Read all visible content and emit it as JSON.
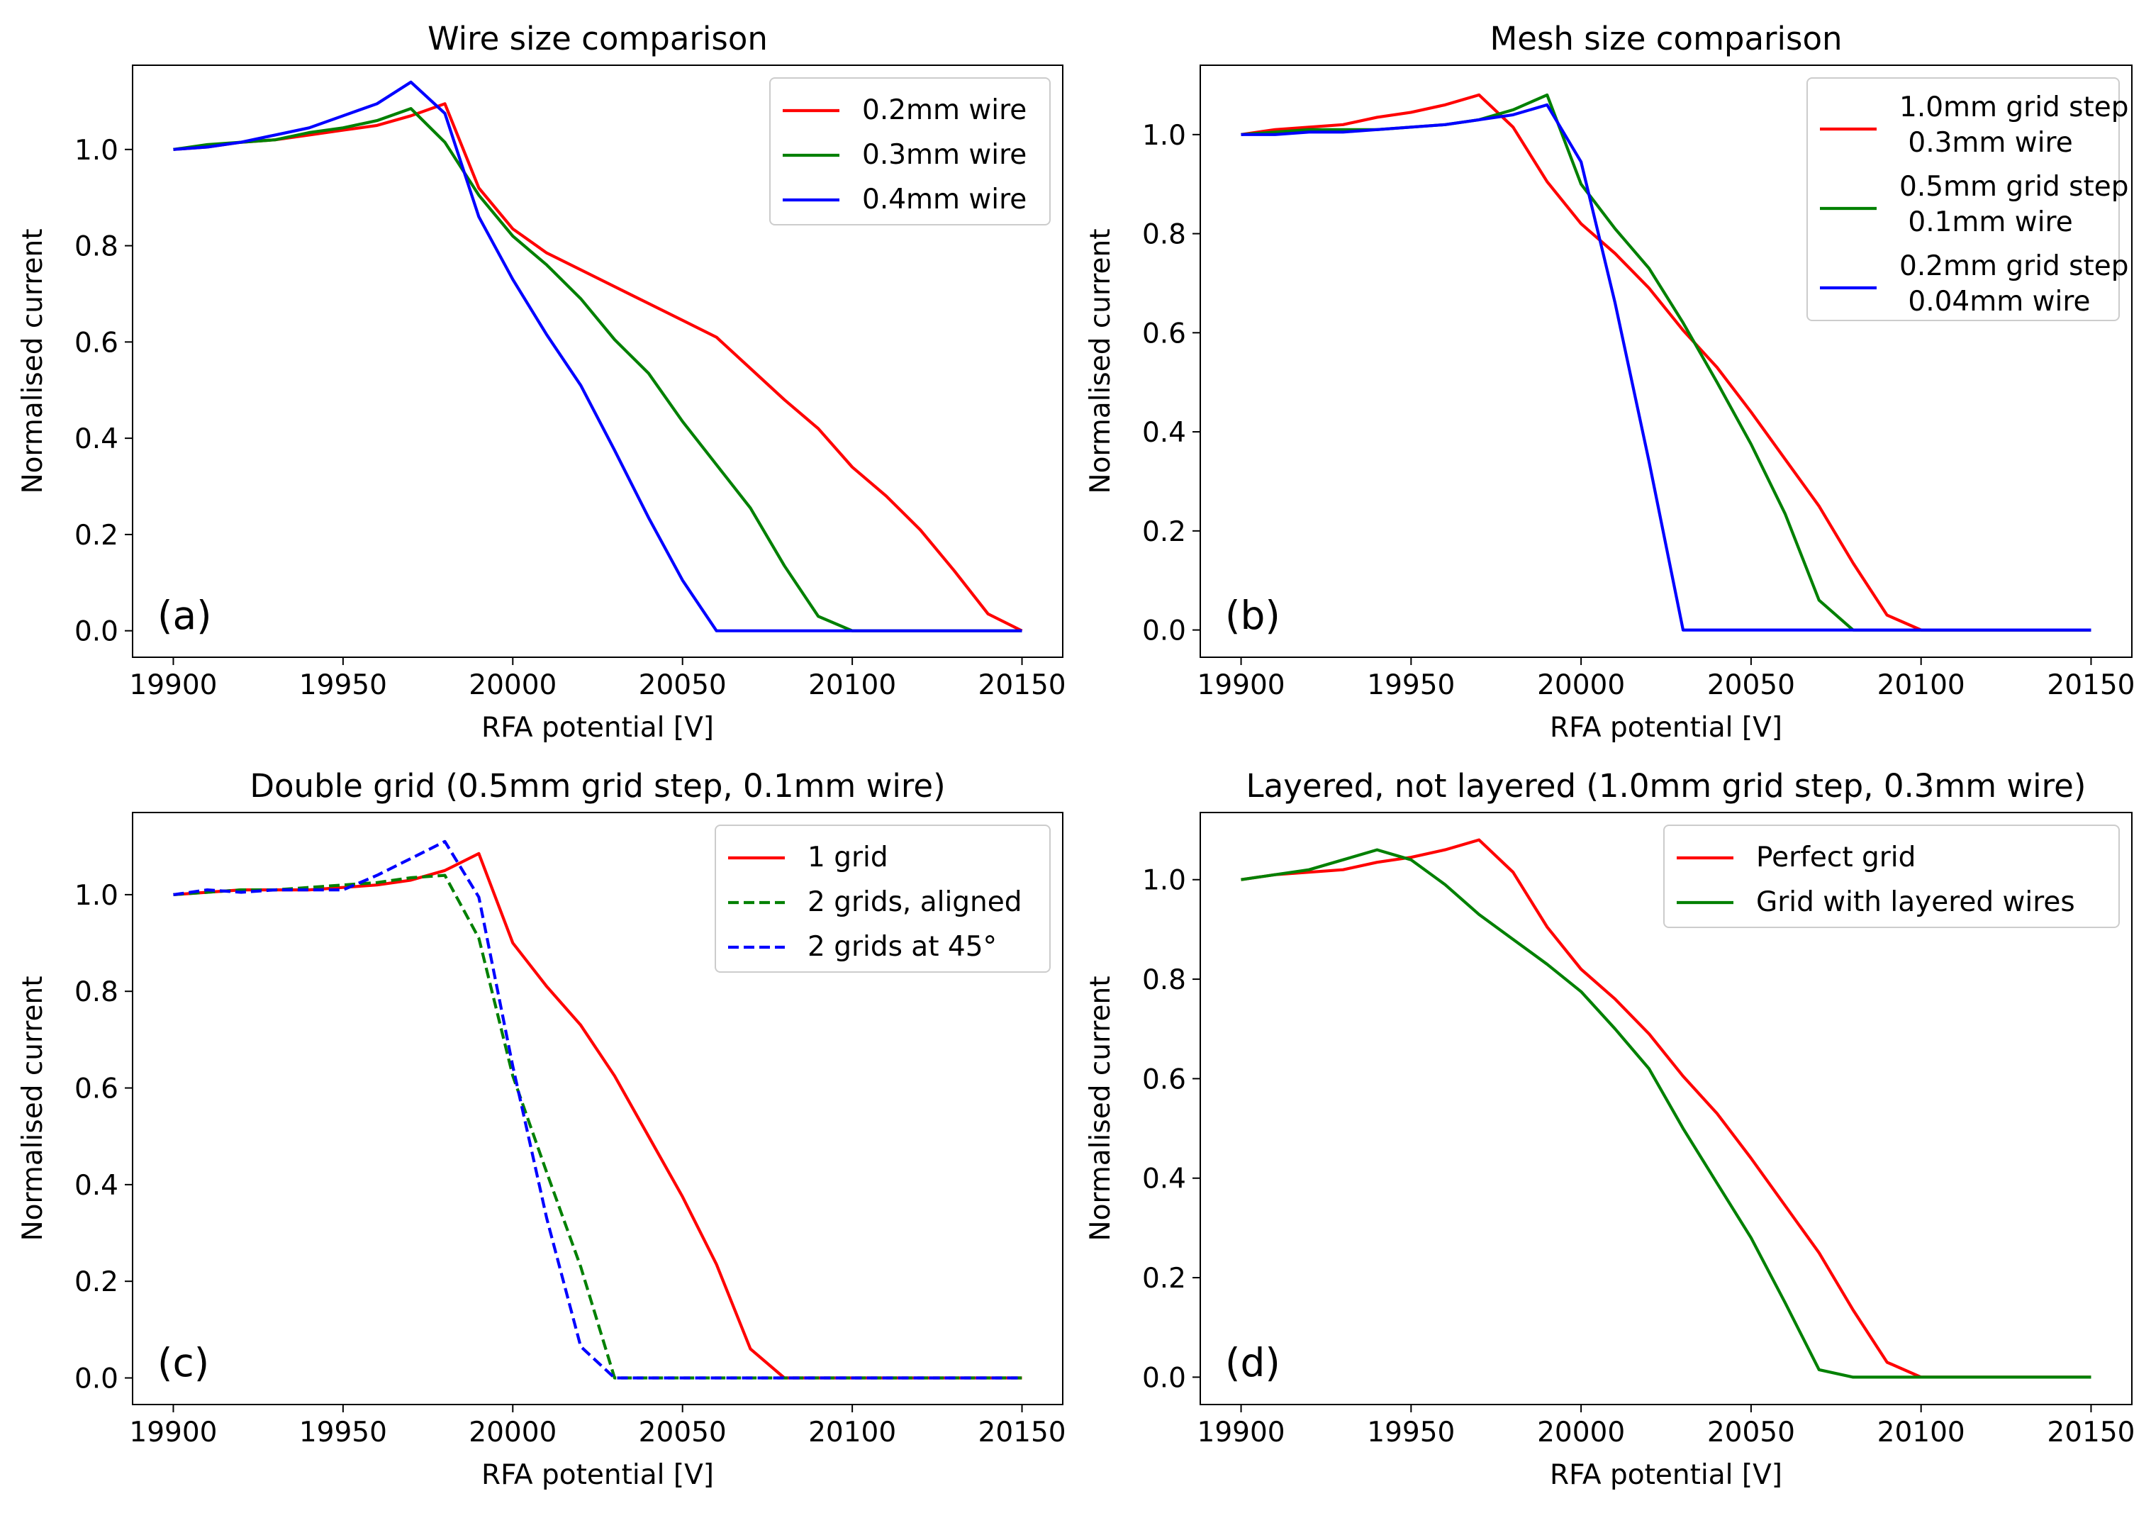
{
  "chart_data": [
    {
      "type": "line",
      "title": "Wire size comparison",
      "xlabel": "RFA potential [V]",
      "ylabel": "Normalised current",
      "panel_label": "(a)",
      "xlim": [
        19888,
        20162
      ],
      "ylim": [
        -0.055,
        1.175
      ],
      "xticks": [
        19900,
        19950,
        20000,
        20050,
        20100,
        20150
      ],
      "yticks": [
        0.0,
        0.2,
        0.4,
        0.6,
        0.8,
        1.0
      ],
      "grid": false,
      "legend_position": "top-right",
      "series": [
        {
          "name": "0.2mm wire",
          "color": "#ff0000",
          "dash": "solid",
          "x": [
            19900,
            19910,
            19920,
            19930,
            19940,
            19950,
            19960,
            19970,
            19980,
            19990,
            20000,
            20010,
            20020,
            20030,
            20040,
            20050,
            20060,
            20070,
            20080,
            20090,
            20100,
            20110,
            20120,
            20130,
            20140,
            20150
          ],
          "y": [
            1.0,
            1.005,
            1.015,
            1.02,
            1.03,
            1.04,
            1.05,
            1.07,
            1.095,
            0.92,
            0.835,
            0.785,
            0.75,
            0.715,
            0.68,
            0.645,
            0.61,
            0.545,
            0.48,
            0.42,
            0.34,
            0.28,
            0.21,
            0.125,
            0.035,
            0.0
          ]
        },
        {
          "name": "0.3mm wire",
          "color": "#008000",
          "dash": "solid",
          "x": [
            19900,
            19910,
            19920,
            19930,
            19940,
            19950,
            19960,
            19970,
            19980,
            19990,
            20000,
            20010,
            20020,
            20030,
            20040,
            20050,
            20060,
            20070,
            20080,
            20090,
            20100,
            20110,
            20120,
            20130,
            20140,
            20150
          ],
          "y": [
            1.0,
            1.01,
            1.015,
            1.02,
            1.035,
            1.045,
            1.06,
            1.085,
            1.015,
            0.905,
            0.82,
            0.76,
            0.69,
            0.605,
            0.535,
            0.435,
            0.345,
            0.255,
            0.135,
            0.03,
            0.0,
            0.0,
            0.0,
            0.0,
            0.0,
            0.0
          ]
        },
        {
          "name": "0.4mm wire",
          "color": "#0000ff",
          "dash": "solid",
          "x": [
            19900,
            19910,
            19920,
            19930,
            19940,
            19950,
            19960,
            19970,
            19980,
            19990,
            20000,
            20010,
            20020,
            20030,
            20040,
            20050,
            20060,
            20070,
            20080,
            20090,
            20100,
            20110,
            20120,
            20130,
            20140,
            20150
          ],
          "y": [
            1.0,
            1.005,
            1.015,
            1.03,
            1.045,
            1.07,
            1.095,
            1.14,
            1.075,
            0.86,
            0.73,
            0.615,
            0.51,
            0.375,
            0.235,
            0.105,
            0.0,
            0.0,
            0.0,
            0.0,
            0.0,
            0.0,
            0.0,
            0.0,
            0.0,
            0.0
          ]
        }
      ]
    },
    {
      "type": "line",
      "title": "Mesh size comparison",
      "xlabel": "RFA potential [V]",
      "ylabel": "Normalised current",
      "panel_label": "(b)",
      "xlim": [
        19888,
        20162
      ],
      "ylim": [
        -0.055,
        1.14
      ],
      "xticks": [
        19900,
        19950,
        20000,
        20050,
        20100,
        20150
      ],
      "yticks": [
        0.0,
        0.2,
        0.4,
        0.6,
        0.8,
        1.0
      ],
      "grid": false,
      "legend_position": "top-right",
      "series": [
        {
          "name": "1.0mm grid step\n 0.3mm wire",
          "color": "#ff0000",
          "dash": "solid",
          "x": [
            19900,
            19910,
            19920,
            19930,
            19940,
            19950,
            19960,
            19970,
            19980,
            19990,
            20000,
            20010,
            20020,
            20030,
            20040,
            20050,
            20060,
            20070,
            20080,
            20090,
            20100,
            20110,
            20120,
            20130,
            20140,
            20150
          ],
          "y": [
            1.0,
            1.01,
            1.015,
            1.02,
            1.035,
            1.045,
            1.06,
            1.08,
            1.015,
            0.905,
            0.82,
            0.76,
            0.69,
            0.605,
            0.53,
            0.44,
            0.345,
            0.25,
            0.135,
            0.03,
            0.0,
            0.0,
            0.0,
            0.0,
            0.0,
            0.0
          ]
        },
        {
          "name": "0.5mm grid step\n 0.1mm wire",
          "color": "#008000",
          "dash": "solid",
          "x": [
            19900,
            19910,
            19920,
            19930,
            19940,
            19950,
            19960,
            19970,
            19980,
            19990,
            20000,
            20010,
            20020,
            20030,
            20040,
            20050,
            20060,
            20070,
            20080,
            20090,
            20100,
            20110,
            20120,
            20130,
            20140,
            20150
          ],
          "y": [
            1.0,
            1.005,
            1.01,
            1.01,
            1.01,
            1.015,
            1.02,
            1.03,
            1.05,
            1.08,
            0.9,
            0.81,
            0.73,
            0.62,
            0.5,
            0.375,
            0.235,
            0.06,
            0.0,
            0.0,
            0.0,
            0.0,
            0.0,
            0.0,
            0.0,
            0.0
          ]
        },
        {
          "name": "0.2mm grid step\n 0.04mm wire",
          "color": "#0000ff",
          "dash": "solid",
          "x": [
            19900,
            19910,
            19920,
            19930,
            19940,
            19950,
            19960,
            19970,
            19980,
            19990,
            20000,
            20010,
            20020,
            20030,
            20040,
            20050,
            20060,
            20070,
            20080,
            20090,
            20100,
            20110,
            20120,
            20130,
            20140,
            20150
          ],
          "y": [
            1.0,
            1.0,
            1.005,
            1.005,
            1.01,
            1.015,
            1.02,
            1.03,
            1.04,
            1.06,
            0.945,
            0.66,
            0.34,
            0.0,
            0.0,
            0.0,
            0.0,
            0.0,
            0.0,
            0.0,
            0.0,
            0.0,
            0.0,
            0.0,
            0.0,
            0.0
          ]
        }
      ]
    },
    {
      "type": "line",
      "title": "Double grid (0.5mm grid step, 0.1mm wire)",
      "xlabel": "RFA potential [V]",
      "ylabel": "Normalised current",
      "panel_label": "(c)",
      "xlim": [
        19888,
        20162
      ],
      "ylim": [
        -0.055,
        1.17
      ],
      "xticks": [
        19900,
        19950,
        20000,
        20050,
        20100,
        20150
      ],
      "yticks": [
        0.0,
        0.2,
        0.4,
        0.6,
        0.8,
        1.0
      ],
      "grid": false,
      "legend_position": "top-right",
      "series": [
        {
          "name": "1 grid",
          "color": "#ff0000",
          "dash": "solid",
          "x": [
            19900,
            19910,
            19920,
            19930,
            19940,
            19950,
            19960,
            19970,
            19980,
            19990,
            20000,
            20010,
            20020,
            20030,
            20040,
            20050,
            20060,
            20070,
            20080,
            20090,
            20100,
            20110,
            20120,
            20130,
            20140,
            20150
          ],
          "y": [
            1.0,
            1.005,
            1.01,
            1.01,
            1.01,
            1.015,
            1.02,
            1.03,
            1.05,
            1.085,
            0.9,
            0.81,
            0.73,
            0.625,
            0.5,
            0.375,
            0.235,
            0.06,
            0.0,
            0.0,
            0.0,
            0.0,
            0.0,
            0.0,
            0.0,
            0.0
          ]
        },
        {
          "name": "2 grids, aligned",
          "color": "#008000",
          "dash": "dashed",
          "x": [
            19900,
            19910,
            19920,
            19930,
            19940,
            19950,
            19960,
            19970,
            19980,
            19990,
            20000,
            20010,
            20020,
            20030,
            20040,
            20050,
            20060,
            20070,
            20080,
            20090,
            20100,
            20110,
            20120,
            20130,
            20140,
            20150
          ],
          "y": [
            1.0,
            1.005,
            1.01,
            1.01,
            1.015,
            1.02,
            1.025,
            1.035,
            1.04,
            0.91,
            0.625,
            0.425,
            0.23,
            0.0,
            0.0,
            0.0,
            0.0,
            0.0,
            0.0,
            0.0,
            0.0,
            0.0,
            0.0,
            0.0,
            0.0,
            0.0
          ]
        },
        {
          "name": "2 grids at 45°",
          "color": "#0000ff",
          "dash": "dashed",
          "x": [
            19900,
            19910,
            19920,
            19930,
            19940,
            19950,
            19960,
            19970,
            19980,
            19990,
            20000,
            20010,
            20020,
            20030,
            20040,
            20050,
            20060,
            20070,
            20080,
            20090,
            20100,
            20110,
            20120,
            20130,
            20140,
            20150
          ],
          "y": [
            1.0,
            1.01,
            1.005,
            1.01,
            1.01,
            1.01,
            1.04,
            1.075,
            1.11,
            0.995,
            0.645,
            0.33,
            0.065,
            0.0,
            0.0,
            0.0,
            0.0,
            0.0,
            0.0,
            0.0,
            0.0,
            0.0,
            0.0,
            0.0,
            0.0,
            0.0
          ]
        }
      ]
    },
    {
      "type": "line",
      "title": "Layered, not layered (1.0mm grid step, 0.3mm wire)",
      "xlabel": "RFA potential [V]",
      "ylabel": "Normalised current",
      "panel_label": "(d)",
      "xlim": [
        19888,
        20162
      ],
      "ylim": [
        -0.055,
        1.135
      ],
      "xticks": [
        19900,
        19950,
        20000,
        20050,
        20100,
        20150
      ],
      "yticks": [
        0.0,
        0.2,
        0.4,
        0.6,
        0.8,
        1.0
      ],
      "grid": false,
      "legend_position": "top-right",
      "series": [
        {
          "name": "Perfect grid",
          "color": "#ff0000",
          "dash": "solid",
          "x": [
            19900,
            19910,
            19920,
            19930,
            19940,
            19950,
            19960,
            19970,
            19980,
            19990,
            20000,
            20010,
            20020,
            20030,
            20040,
            20050,
            20060,
            20070,
            20080,
            20090,
            20100,
            20110,
            20120,
            20130,
            20140,
            20150
          ],
          "y": [
            1.0,
            1.01,
            1.015,
            1.02,
            1.035,
            1.045,
            1.06,
            1.08,
            1.015,
            0.905,
            0.82,
            0.76,
            0.69,
            0.605,
            0.53,
            0.44,
            0.345,
            0.25,
            0.135,
            0.03,
            0.0,
            0.0,
            0.0,
            0.0,
            0.0,
            0.0
          ]
        },
        {
          "name": "Grid with layered wires",
          "color": "#008000",
          "dash": "solid",
          "x": [
            19900,
            19910,
            19920,
            19930,
            19940,
            19950,
            19960,
            19970,
            19980,
            19990,
            20000,
            20010,
            20020,
            20030,
            20040,
            20050,
            20060,
            20070,
            20080,
            20090,
            20100,
            20110,
            20120,
            20130,
            20140,
            20150
          ],
          "y": [
            1.0,
            1.01,
            1.02,
            1.04,
            1.06,
            1.04,
            0.99,
            0.93,
            0.88,
            0.83,
            0.775,
            0.7,
            0.62,
            0.5,
            0.39,
            0.28,
            0.15,
            0.015,
            0.0,
            0.0,
            0.0,
            0.0,
            0.0,
            0.0,
            0.0,
            0.0
          ]
        }
      ]
    }
  ]
}
